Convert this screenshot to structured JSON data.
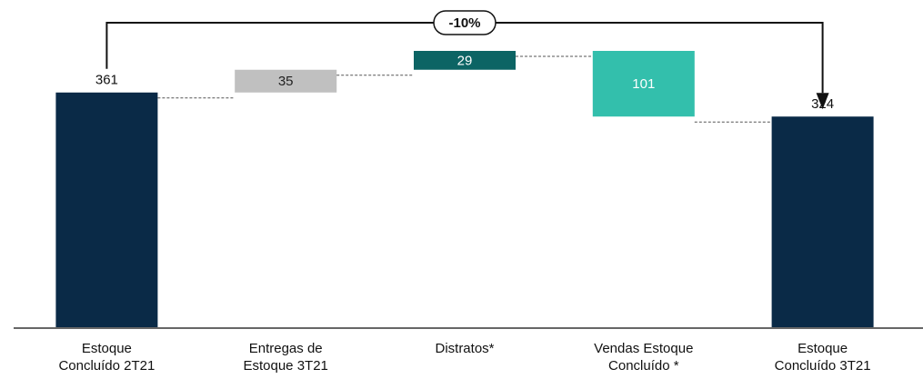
{
  "chart_data": {
    "type": "waterfall",
    "categories": [
      "Estoque Concluído 2T21",
      "Entregas de Estoque 3T21",
      "Distratos*",
      "Vendas Estoque Concluído *",
      "Estoque Concluído 3T21"
    ],
    "values": [
      361,
      35,
      29,
      -101,
      324
    ],
    "value_labels": [
      "361",
      "35",
      "29",
      "101",
      "324"
    ],
    "colors": [
      "#0a2a47",
      "#c0c0c0",
      "#0c6464",
      "#33bfac",
      "#0a2a47"
    ],
    "totals": [
      true,
      false,
      false,
      false,
      true
    ],
    "annotation": "-10%"
  }
}
